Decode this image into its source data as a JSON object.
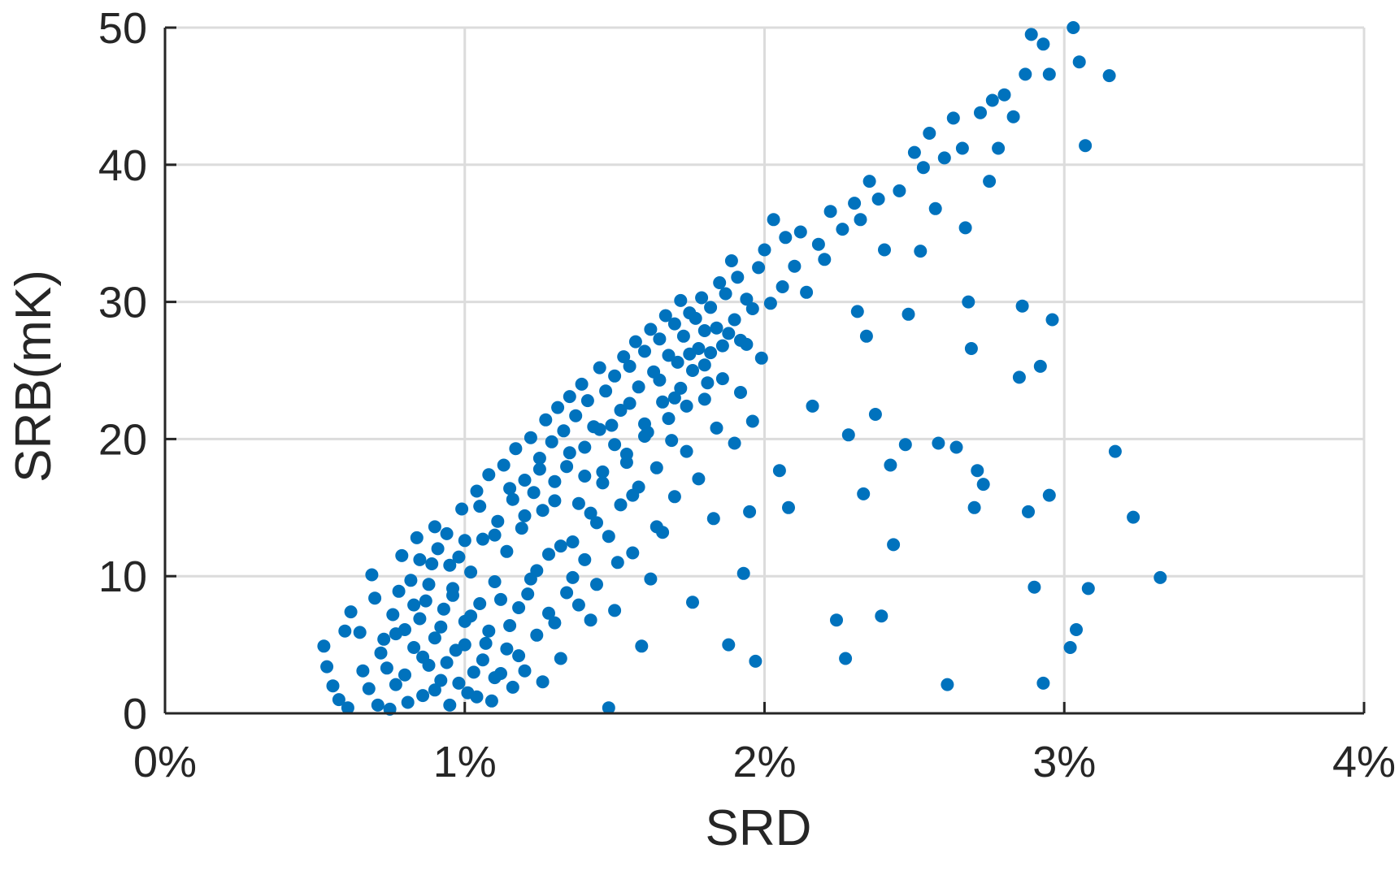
{
  "chart_data": {
    "type": "scatter",
    "title": "",
    "xlabel": "SRD",
    "ylabel": "SRB(mK)",
    "xlim": [
      0,
      4
    ],
    "ylim": [
      0,
      50
    ],
    "x_unit": "%",
    "x_ticks": [
      0,
      1,
      2,
      3,
      4
    ],
    "x_tick_labels": [
      "0%",
      "1%",
      "2%",
      "3%",
      "4%"
    ],
    "y_ticks": [
      0,
      10,
      20,
      30,
      40,
      50
    ],
    "y_tick_labels": [
      "0",
      "10",
      "20",
      "30",
      "40",
      "50"
    ],
    "grid": true,
    "marker_color": "#0072BD",
    "series": [
      {
        "points": [
          [
            0.53,
            4.9
          ],
          [
            0.54,
            3.4
          ],
          [
            0.56,
            2.0
          ],
          [
            0.58,
            1.0
          ],
          [
            0.61,
            0.4
          ],
          [
            0.6,
            6.0
          ],
          [
            0.62,
            7.4
          ],
          [
            0.65,
            5.9
          ],
          [
            0.66,
            3.1
          ],
          [
            0.68,
            1.8
          ],
          [
            0.69,
            10.1
          ],
          [
            0.7,
            8.4
          ],
          [
            0.71,
            0.6
          ],
          [
            0.72,
            4.4
          ],
          [
            0.73,
            5.4
          ],
          [
            0.75,
            0.3
          ],
          [
            0.76,
            7.2
          ],
          [
            0.77,
            2.1
          ],
          [
            0.78,
            8.9
          ],
          [
            0.79,
            11.5
          ],
          [
            0.8,
            6.1
          ],
          [
            0.81,
            0.8
          ],
          [
            0.82,
            9.7
          ],
          [
            0.83,
            4.8
          ],
          [
            0.84,
            12.8
          ],
          [
            0.85,
            6.9
          ],
          [
            0.86,
            1.3
          ],
          [
            0.87,
            8.2
          ],
          [
            0.88,
            3.5
          ],
          [
            0.89,
            10.9
          ],
          [
            0.9,
            5.5
          ],
          [
            0.91,
            12.0
          ],
          [
            0.92,
            2.4
          ],
          [
            0.93,
            7.6
          ],
          [
            0.94,
            13.1
          ],
          [
            0.95,
            0.6
          ],
          [
            0.96,
            9.1
          ],
          [
            0.97,
            4.6
          ],
          [
            0.98,
            11.4
          ],
          [
            0.99,
            14.9
          ],
          [
            1.0,
            6.7
          ],
          [
            1.01,
            1.5
          ],
          [
            1.02,
            10.3
          ],
          [
            1.03,
            3.0
          ],
          [
            1.04,
            16.2
          ],
          [
            1.05,
            8.0
          ],
          [
            1.06,
            12.7
          ],
          [
            1.07,
            5.1
          ],
          [
            1.08,
            17.4
          ],
          [
            1.09,
            0.9
          ],
          [
            1.1,
            9.6
          ],
          [
            1.11,
            14.0
          ],
          [
            1.12,
            2.9
          ],
          [
            1.13,
            18.1
          ],
          [
            1.14,
            11.8
          ],
          [
            1.15,
            6.4
          ],
          [
            1.16,
            15.6
          ],
          [
            1.17,
            19.3
          ],
          [
            1.18,
            4.2
          ],
          [
            1.19,
            13.5
          ],
          [
            1.2,
            17.0
          ],
          [
            1.21,
            8.7
          ],
          [
            1.22,
            20.1
          ],
          [
            1.23,
            16.1
          ],
          [
            1.24,
            10.4
          ],
          [
            1.25,
            18.6
          ],
          [
            1.26,
            14.8
          ],
          [
            1.27,
            21.4
          ],
          [
            1.28,
            7.3
          ],
          [
            1.29,
            19.8
          ],
          [
            1.3,
            16.9
          ],
          [
            1.31,
            22.3
          ],
          [
            1.32,
            12.2
          ],
          [
            1.33,
            20.6
          ],
          [
            1.34,
            18.0
          ],
          [
            1.35,
            23.1
          ],
          [
            1.36,
            9.9
          ],
          [
            1.37,
            21.7
          ],
          [
            1.38,
            15.3
          ],
          [
            1.39,
            24.0
          ],
          [
            1.4,
            19.4
          ],
          [
            1.41,
            22.8
          ],
          [
            1.42,
            6.8
          ],
          [
            1.43,
            20.9
          ],
          [
            1.44,
            13.9
          ],
          [
            1.45,
            25.2
          ],
          [
            1.46,
            17.6
          ],
          [
            1.47,
            23.5
          ],
          [
            1.48,
            0.4
          ],
          [
            1.49,
            21.0
          ],
          [
            1.5,
            24.6
          ],
          [
            1.51,
            11.0
          ],
          [
            1.52,
            22.1
          ],
          [
            1.53,
            26.0
          ],
          [
            1.54,
            18.9
          ],
          [
            1.55,
            25.3
          ],
          [
            1.56,
            15.9
          ],
          [
            1.57,
            27.1
          ],
          [
            1.58,
            23.8
          ],
          [
            1.59,
            4.9
          ],
          [
            1.6,
            26.4
          ],
          [
            1.61,
            20.5
          ],
          [
            1.62,
            28.0
          ],
          [
            1.63,
            24.9
          ],
          [
            1.64,
            13.6
          ],
          [
            1.65,
            27.3
          ],
          [
            1.66,
            22.7
          ],
          [
            1.67,
            29.0
          ],
          [
            1.68,
            26.1
          ],
          [
            1.69,
            19.9
          ],
          [
            1.7,
            28.4
          ],
          [
            1.71,
            25.6
          ],
          [
            1.72,
            30.1
          ],
          [
            1.73,
            27.5
          ],
          [
            1.74,
            22.4
          ],
          [
            1.75,
            29.2
          ],
          [
            1.76,
            8.1
          ],
          [
            1.77,
            28.8
          ],
          [
            1.78,
            26.6
          ],
          [
            1.79,
            30.3
          ],
          [
            1.8,
            27.9
          ],
          [
            1.81,
            24.1
          ],
          [
            1.82,
            29.6
          ],
          [
            1.83,
            14.2
          ],
          [
            1.84,
            28.1
          ],
          [
            1.85,
            31.4
          ],
          [
            1.86,
            26.8
          ],
          [
            1.87,
            30.6
          ],
          [
            1.88,
            5.0
          ],
          [
            1.89,
            33.0
          ],
          [
            1.9,
            28.7
          ],
          [
            1.91,
            31.8
          ],
          [
            1.92,
            27.2
          ],
          [
            1.93,
            10.2
          ],
          [
            1.94,
            30.2
          ],
          [
            1.95,
            14.7
          ],
          [
            1.96,
            29.5
          ],
          [
            1.97,
            3.8
          ],
          [
            1.98,
            32.5
          ],
          [
            1.99,
            25.9
          ],
          [
            2.0,
            33.8
          ],
          [
            2.02,
            29.9
          ],
          [
            2.03,
            36.0
          ],
          [
            2.05,
            17.7
          ],
          [
            2.06,
            31.1
          ],
          [
            2.07,
            34.7
          ],
          [
            2.08,
            15.0
          ],
          [
            2.1,
            32.6
          ],
          [
            2.12,
            35.1
          ],
          [
            2.14,
            30.7
          ],
          [
            2.16,
            22.4
          ],
          [
            2.18,
            34.2
          ],
          [
            2.2,
            33.1
          ],
          [
            2.22,
            36.6
          ],
          [
            2.24,
            6.8
          ],
          [
            2.26,
            35.3
          ],
          [
            2.27,
            4.0
          ],
          [
            2.28,
            20.3
          ],
          [
            2.3,
            37.2
          ],
          [
            2.31,
            29.3
          ],
          [
            2.32,
            36.0
          ],
          [
            2.33,
            16.0
          ],
          [
            2.34,
            27.5
          ],
          [
            2.35,
            38.8
          ],
          [
            2.37,
            21.8
          ],
          [
            2.38,
            37.5
          ],
          [
            2.39,
            7.1
          ],
          [
            2.4,
            33.8
          ],
          [
            2.42,
            18.1
          ],
          [
            2.43,
            12.3
          ],
          [
            2.45,
            38.1
          ],
          [
            2.47,
            19.6
          ],
          [
            2.48,
            29.1
          ],
          [
            2.5,
            40.9
          ],
          [
            2.52,
            33.7
          ],
          [
            2.53,
            39.8
          ],
          [
            2.55,
            42.3
          ],
          [
            2.57,
            36.8
          ],
          [
            2.58,
            19.7
          ],
          [
            2.6,
            40.5
          ],
          [
            2.61,
            2.1
          ],
          [
            2.63,
            43.4
          ],
          [
            2.64,
            19.4
          ],
          [
            2.66,
            41.2
          ],
          [
            2.67,
            35.4
          ],
          [
            2.68,
            30.0
          ],
          [
            2.69,
            26.6
          ],
          [
            2.7,
            15.0
          ],
          [
            2.71,
            17.7
          ],
          [
            2.72,
            43.8
          ],
          [
            2.73,
            16.7
          ],
          [
            2.75,
            38.8
          ],
          [
            2.76,
            44.7
          ],
          [
            2.78,
            41.2
          ],
          [
            2.8,
            45.1
          ],
          [
            2.83,
            43.5
          ],
          [
            2.85,
            24.5
          ],
          [
            2.86,
            29.7
          ],
          [
            2.87,
            46.6
          ],
          [
            2.88,
            14.7
          ],
          [
            2.89,
            49.5
          ],
          [
            2.9,
            9.2
          ],
          [
            2.92,
            25.3
          ],
          [
            2.93,
            48.8
          ],
          [
            2.93,
            2.2
          ],
          [
            2.95,
            15.9
          ],
          [
            2.95,
            46.6
          ],
          [
            2.96,
            28.7
          ],
          [
            3.02,
            4.8
          ],
          [
            3.03,
            50.0
          ],
          [
            3.04,
            6.1
          ],
          [
            3.05,
            47.5
          ],
          [
            3.07,
            41.4
          ],
          [
            3.08,
            9.1
          ],
          [
            3.15,
            46.5
          ],
          [
            3.17,
            19.1
          ],
          [
            3.23,
            14.3
          ],
          [
            3.32,
            9.9
          ],
          [
            0.74,
            3.3
          ],
          [
            0.77,
            5.8
          ],
          [
            0.8,
            2.8
          ],
          [
            0.83,
            7.9
          ],
          [
            0.86,
            4.1
          ],
          [
            0.88,
            9.4
          ],
          [
            0.9,
            1.7
          ],
          [
            0.92,
            6.3
          ],
          [
            0.94,
            3.7
          ],
          [
            0.96,
            8.6
          ],
          [
            0.98,
            2.2
          ],
          [
            1.0,
            5.0
          ],
          [
            1.02,
            7.1
          ],
          [
            1.04,
            1.2
          ],
          [
            1.06,
            3.9
          ],
          [
            1.08,
            6.0
          ],
          [
            1.1,
            2.6
          ],
          [
            1.12,
            8.3
          ],
          [
            1.14,
            4.7
          ],
          [
            1.16,
            1.9
          ],
          [
            1.18,
            7.7
          ],
          [
            1.2,
            3.1
          ],
          [
            1.22,
            9.8
          ],
          [
            1.24,
            5.7
          ],
          [
            1.26,
            2.3
          ],
          [
            1.28,
            11.6
          ],
          [
            1.3,
            6.6
          ],
          [
            1.32,
            4.0
          ],
          [
            1.34,
            8.8
          ],
          [
            1.36,
            12.5
          ],
          [
            1.38,
            7.9
          ],
          [
            1.4,
            11.2
          ],
          [
            1.42,
            14.6
          ],
          [
            1.44,
            9.4
          ],
          [
            1.46,
            16.8
          ],
          [
            1.48,
            12.9
          ],
          [
            1.5,
            7.5
          ],
          [
            1.52,
            15.2
          ],
          [
            1.54,
            18.3
          ],
          [
            1.56,
            11.7
          ],
          [
            1.58,
            16.5
          ],
          [
            1.6,
            20.2
          ],
          [
            1.62,
            9.8
          ],
          [
            1.64,
            17.9
          ],
          [
            1.66,
            13.2
          ],
          [
            1.68,
            21.5
          ],
          [
            1.7,
            15.8
          ],
          [
            1.72,
            23.7
          ],
          [
            1.74,
            19.1
          ],
          [
            1.76,
            25.0
          ],
          [
            1.78,
            17.1
          ],
          [
            1.8,
            22.9
          ],
          [
            1.82,
            26.3
          ],
          [
            1.84,
            20.8
          ],
          [
            1.86,
            24.4
          ],
          [
            1.88,
            27.7
          ],
          [
            1.9,
            19.7
          ],
          [
            1.92,
            23.4
          ],
          [
            1.94,
            26.9
          ],
          [
            1.96,
            21.3
          ],
          [
            0.85,
            11.2
          ],
          [
            0.9,
            13.6
          ],
          [
            0.95,
            10.8
          ],
          [
            1.0,
            12.6
          ],
          [
            1.05,
            15.1
          ],
          [
            1.1,
            13.0
          ],
          [
            1.15,
            16.4
          ],
          [
            1.2,
            14.4
          ],
          [
            1.25,
            17.8
          ],
          [
            1.3,
            15.5
          ],
          [
            1.35,
            19.0
          ],
          [
            1.4,
            17.3
          ],
          [
            1.45,
            20.7
          ],
          [
            1.5,
            19.6
          ],
          [
            1.55,
            22.6
          ],
          [
            1.6,
            21.1
          ],
          [
            1.65,
            24.3
          ],
          [
            1.7,
            23.0
          ],
          [
            1.75,
            26.2
          ],
          [
            1.8,
            25.4
          ]
        ]
      }
    ]
  }
}
